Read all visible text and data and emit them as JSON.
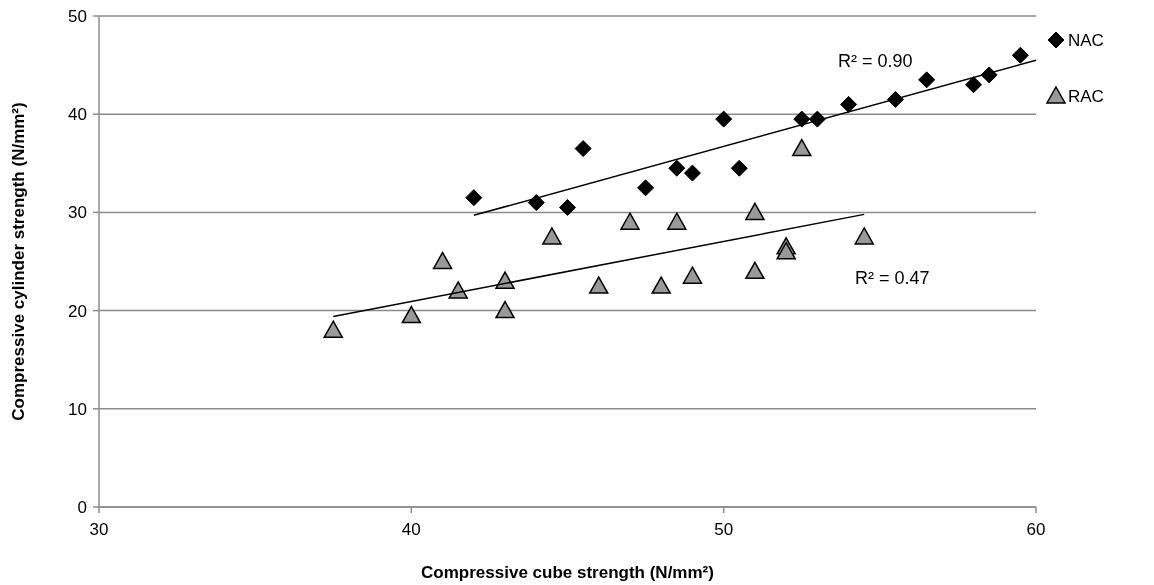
{
  "chart_data": {
    "type": "scatter",
    "xlabel": "Compressive cube strength (N/mm²)",
    "ylabel": "Compressive cylinder strength (N/mm²)",
    "xlim": [
      30,
      60
    ],
    "xticks": [
      30,
      40,
      50,
      60
    ],
    "ylim": [
      0,
      50
    ],
    "yticks": [
      0,
      10,
      20,
      30,
      40,
      50
    ],
    "grid": "y",
    "legend": "right",
    "series": [
      {
        "name": "NAC",
        "color": "#000000",
        "marker": "diamond",
        "x": [
          42,
          44,
          45,
          45.5,
          47.5,
          48.5,
          49,
          50,
          50.5,
          52.5,
          53,
          54,
          55.5,
          56.5,
          58,
          58.5,
          59.5
        ],
        "values": [
          31.5,
          31,
          30.5,
          36.5,
          32.5,
          34.5,
          34,
          39.5,
          34.5,
          39.5,
          39.5,
          41,
          41.5,
          43.5,
          43,
          44,
          46
        ]
      },
      {
        "name": "RAC",
        "color": "#999999",
        "marker": "triangle",
        "x": [
          37.5,
          40,
          41,
          41.5,
          43,
          43,
          44.5,
          46,
          47,
          48,
          48.5,
          49,
          51,
          51,
          52,
          52,
          52.5,
          54.5
        ],
        "values": [
          18,
          19.5,
          25,
          22,
          23,
          20,
          27.5,
          22.5,
          29,
          22.5,
          29,
          23.5,
          30,
          24,
          26.5,
          26,
          36.5,
          27.5
        ]
      },
      {
        "type": "line",
        "color": "#000000",
        "marker": "none",
        "x": [
          42,
          60
        ],
        "values": [
          29.7,
          45.5
        ]
      },
      {
        "type": "line",
        "color": "#000000",
        "marker": "none",
        "x": [
          37.5,
          54.5
        ],
        "values": [
          19.4,
          29.8
        ]
      }
    ],
    "annotations": [
      "R² = 0.90",
      "R² = 0.47"
    ]
  }
}
